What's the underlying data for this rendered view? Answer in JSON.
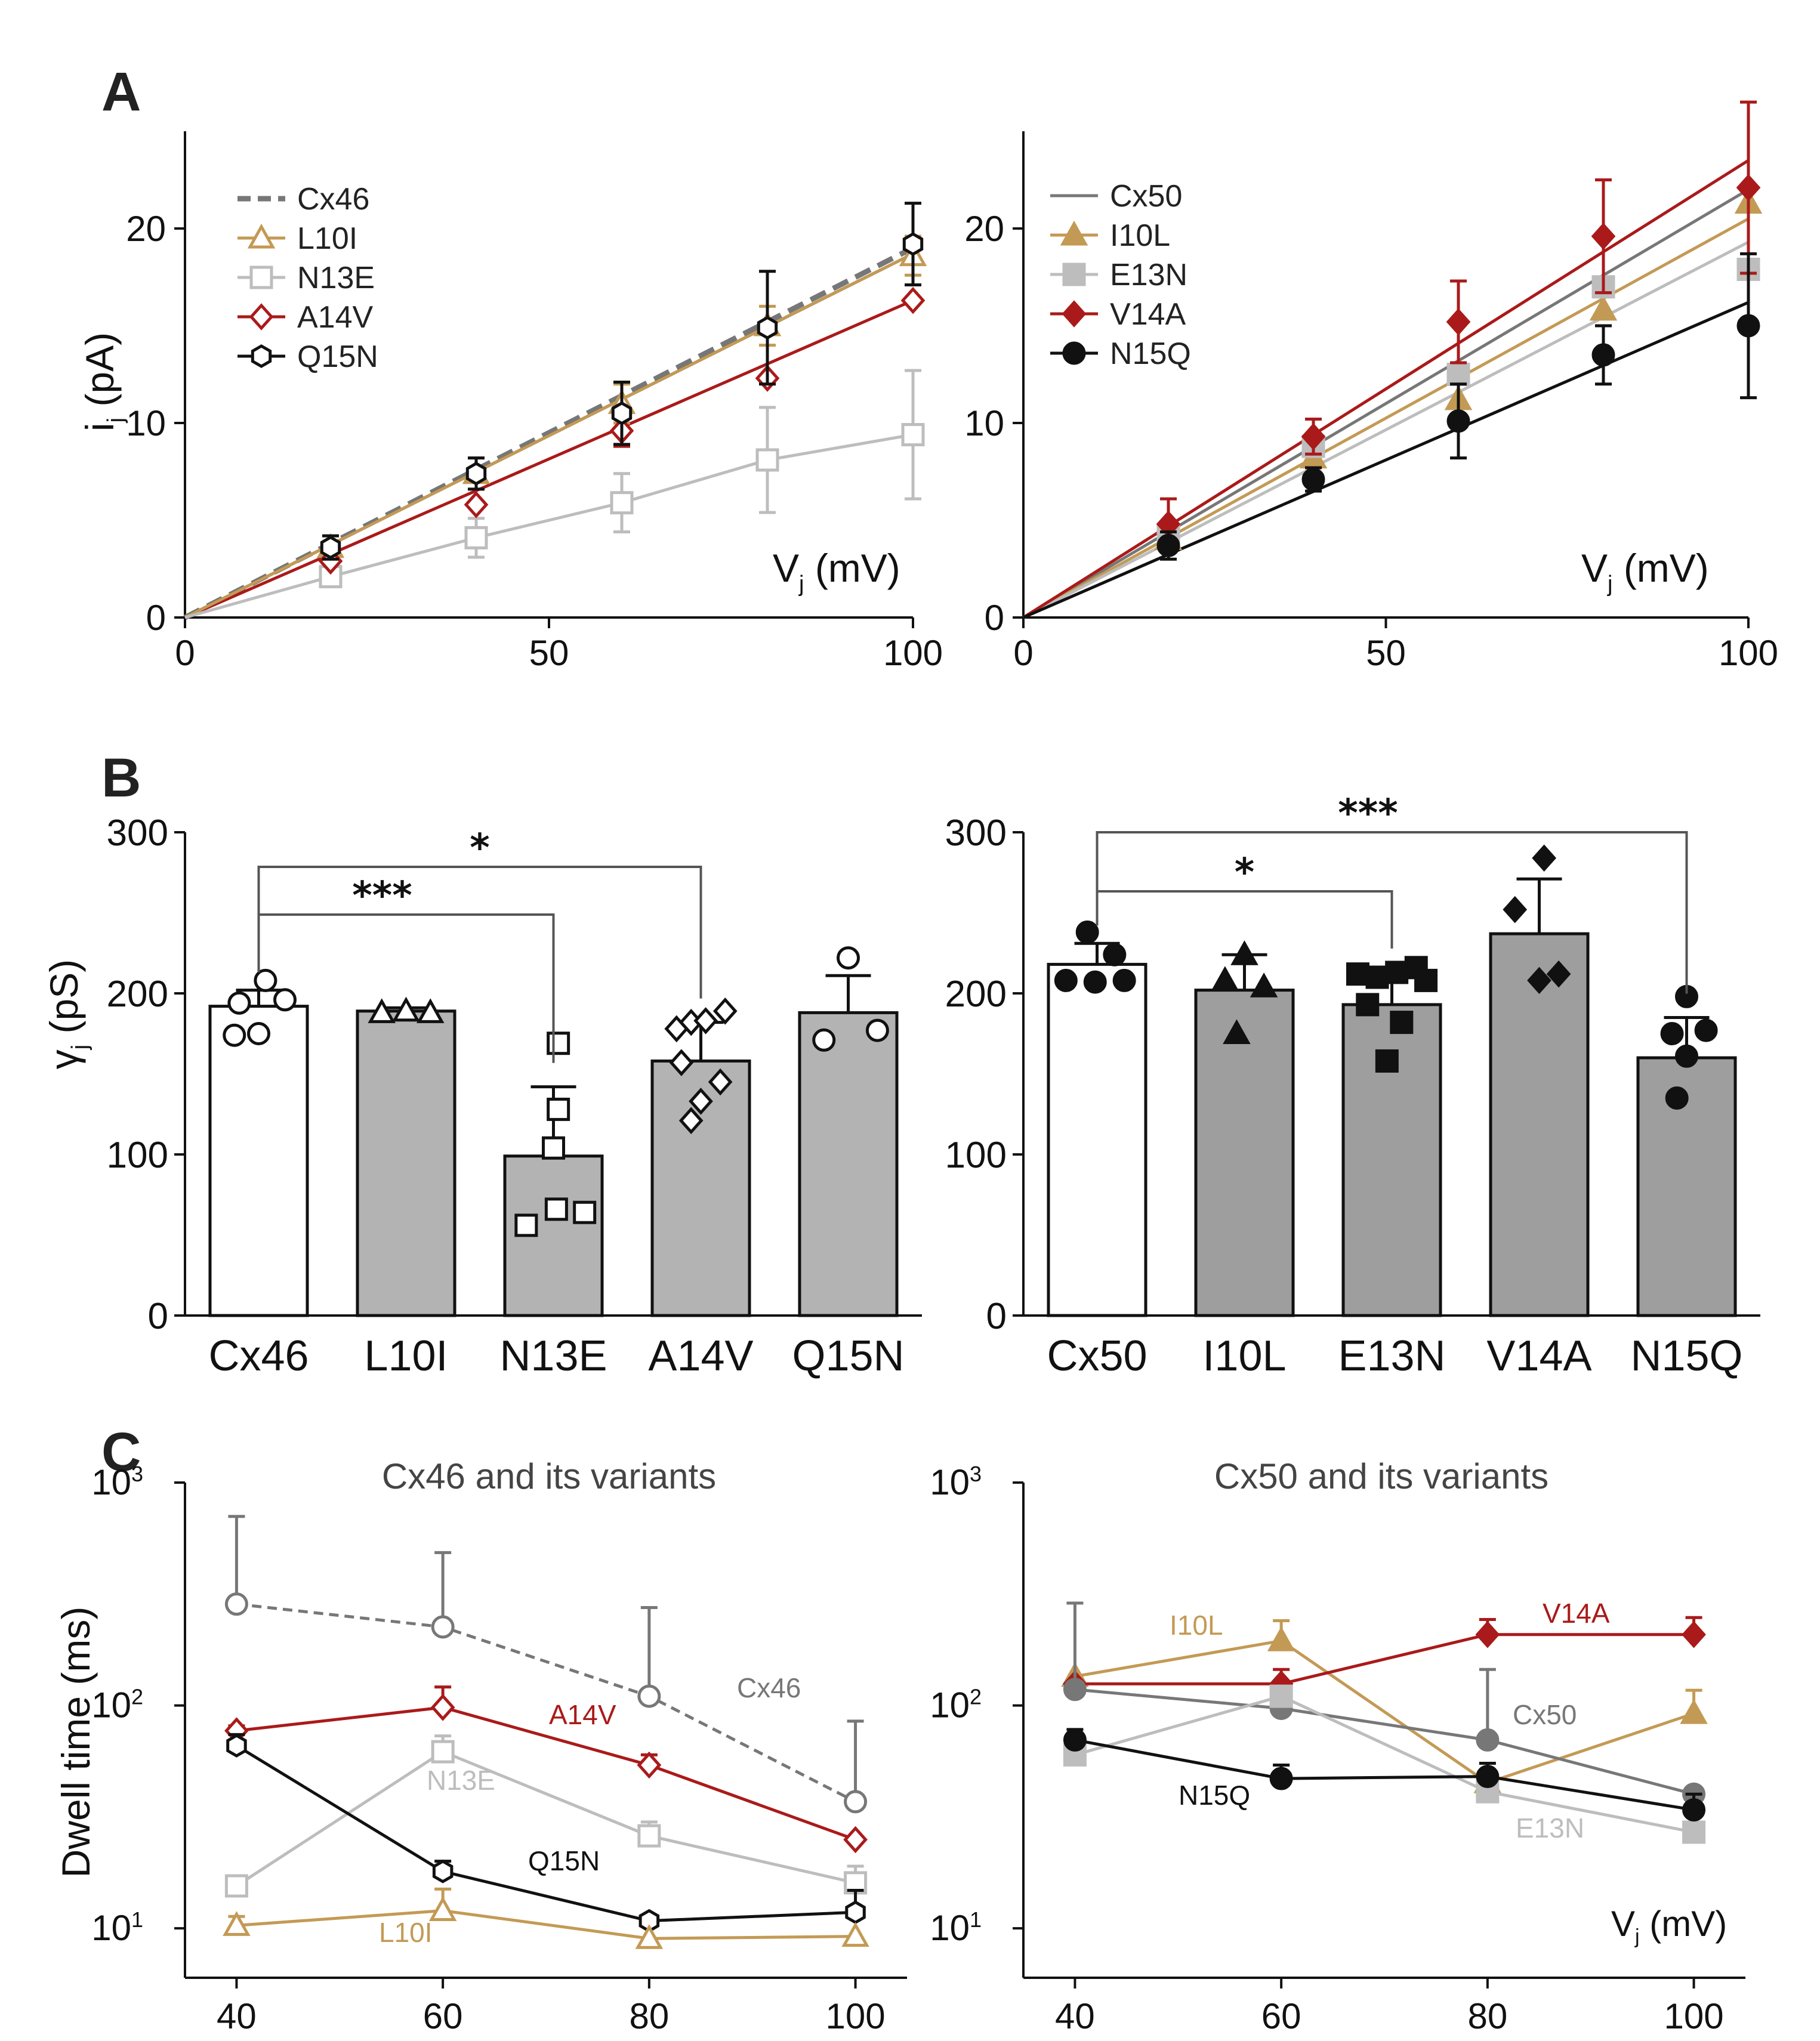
{
  "panel_letters": [
    "A",
    "B",
    "C"
  ],
  "colors": {
    "gray": "#777777",
    "tan": "#c39a55",
    "light": "#bdbdbd",
    "red": "#aa1a1a",
    "black": "#111111",
    "bar": "#b3b3b3",
    "bar_dark": "#9e9e9e"
  },
  "chart_data": [
    {
      "id": "A1",
      "type": "line",
      "ylabel": "i",
      "ylabel_sub": "j",
      "ylabel_unit": "(pA)",
      "xlabel": "V",
      "xlabel_sub": "j",
      "xlabel_unit": "(mV)",
      "xlim": [
        0,
        100
      ],
      "ylim": [
        0,
        25
      ],
      "xticks": [
        "0",
        "50",
        "100"
      ],
      "yticks": [
        "0",
        "10",
        "20"
      ],
      "fit_lines": [
        {
          "name": "Cx46",
          "slope": 0.19
        },
        {
          "name": "Q15N",
          "slope": 0.187
        },
        {
          "name": "A14V",
          "slope": 0.163
        },
        {
          "name": "L10I",
          "slope": 0.187
        }
      ],
      "series": [
        {
          "name": "Cx46",
          "color": "gray",
          "marker": "none",
          "dash": true,
          "x": [
            0,
            100
          ],
          "y": [
            0,
            19
          ],
          "err": [
            0,
            0
          ]
        },
        {
          "name": "L10I",
          "color": "tan",
          "marker": "triangle-open",
          "x": [
            20,
            40,
            60,
            80,
            100
          ],
          "y": [
            3.6,
            7.4,
            11.0,
            15.0,
            18.6
          ],
          "err": [
            0.6,
            0.8,
            1.0,
            1.0,
            1.0
          ]
        },
        {
          "name": "N13E",
          "color": "light",
          "marker": "square-open",
          "x": [
            20,
            40,
            60,
            80,
            100
          ],
          "y": [
            2.1,
            4.1,
            5.9,
            8.1,
            9.4
          ],
          "err": [
            0.3,
            1.0,
            1.5,
            2.7,
            3.3
          ]
        },
        {
          "name": "A14V",
          "color": "red",
          "marker": "diamond-open",
          "x": [
            20,
            40,
            60,
            80,
            100
          ],
          "y": [
            2.9,
            5.8,
            9.6,
            12.3,
            16.3
          ],
          "err": [
            0,
            0,
            0.8,
            0,
            0
          ]
        },
        {
          "name": "Q15N",
          "color": "black",
          "marker": "hexagon-open",
          "x": [
            20,
            40,
            60,
            80,
            100
          ],
          "y": [
            3.6,
            7.4,
            10.5,
            14.9,
            19.2
          ],
          "err": [
            0.6,
            0.8,
            1.6,
            2.9,
            2.1
          ]
        }
      ]
    },
    {
      "id": "A2",
      "type": "line",
      "xlabel": "V",
      "xlabel_sub": "j",
      "xlabel_unit": "(mV)",
      "xlim": [
        0,
        100
      ],
      "ylim": [
        0,
        25
      ],
      "xticks": [
        "0",
        "50",
        "100"
      ],
      "yticks": [
        "0",
        "10",
        "20"
      ],
      "fit_lines": [
        {
          "name": "Cx50",
          "slope": 0.22
        },
        {
          "name": "I10L",
          "slope": 0.205
        },
        {
          "name": "E13N",
          "slope": 0.193
        },
        {
          "name": "V14A",
          "slope": 0.235
        },
        {
          "name": "N15Q",
          "slope": 0.162
        }
      ],
      "series": [
        {
          "name": "Cx50",
          "color": "gray",
          "marker": "none",
          "x": [
            0,
            100
          ],
          "y": [
            0,
            22
          ],
          "err": [
            0,
            0
          ]
        },
        {
          "name": "I10L",
          "color": "tan",
          "marker": "triangle",
          "x": [
            20,
            40,
            60,
            80,
            100
          ],
          "y": [
            4.0,
            8.2,
            11.2,
            15.8,
            21.3
          ],
          "err": [
            0,
            0,
            0,
            0,
            0
          ]
        },
        {
          "name": "E13N",
          "color": "light",
          "marker": "square",
          "x": [
            20,
            40,
            60,
            80,
            100
          ],
          "y": [
            4.2,
            8.8,
            12.5,
            17.0,
            17.9
          ],
          "err": [
            0,
            0,
            0,
            0,
            0
          ]
        },
        {
          "name": "V14A",
          "color": "red",
          "marker": "diamond",
          "x": [
            20,
            40,
            60,
            80,
            100
          ],
          "y": [
            4.8,
            9.3,
            15.2,
            19.6,
            22.1
          ],
          "err": [
            1.3,
            0.9,
            2.1,
            2.9,
            4.4
          ]
        },
        {
          "name": "N15Q",
          "color": "black",
          "marker": "circle",
          "x": [
            20,
            40,
            60,
            80,
            100
          ],
          "y": [
            3.7,
            7.1,
            10.1,
            13.5,
            15.0
          ],
          "err": [
            0.7,
            0.6,
            1.9,
            1.5,
            3.7
          ]
        }
      ]
    },
    {
      "id": "B1",
      "type": "bar",
      "ylabel": "γ",
      "ylabel_sub": "j",
      "ylabel_unit": "(pS)",
      "ylim": [
        0,
        300
      ],
      "yticks": [
        "0",
        "100",
        "200",
        "300"
      ],
      "categories": [
        "Cx46",
        "L10I",
        "N13E",
        "A14V",
        "Q15N"
      ],
      "values": [
        192,
        189,
        99,
        158,
        188
      ],
      "errors": [
        10,
        2,
        43,
        24,
        23
      ],
      "fills": [
        "white",
        "gray",
        "gray",
        "gray",
        "gray"
      ],
      "marker": "open",
      "points": [
        {
          "x": [
            -0.2,
            0.07,
            0.27,
            -0.25,
            0.0
          ],
          "y": [
            194,
            208,
            196,
            174,
            175
          ]
        },
        {
          "x": [
            -0.25,
            0.0,
            0.25
          ],
          "y": [
            188,
            189,
            188
          ]
        },
        {
          "x": [
            0.05,
            0.05,
            0.0,
            -0.28,
            0.03,
            0.32
          ],
          "y": [
            169,
            128,
            104,
            56,
            66,
            64
          ]
        },
        {
          "x": [
            -0.25,
            -0.1,
            0.05,
            0.25,
            -0.2,
            0.2,
            -0.1,
            0.0
          ],
          "y": [
            178,
            182,
            183,
            189,
            157,
            145,
            121,
            133
          ]
        },
        {
          "x": [
            -0.25,
            0.0,
            0.3
          ],
          "y": [
            171,
            222,
            177
          ]
        }
      ],
      "significance": [
        {
          "from": 0,
          "to": 2,
          "label": "***"
        },
        {
          "from": 0,
          "to": 3,
          "label": "*"
        }
      ]
    },
    {
      "id": "B2",
      "type": "bar",
      "ylim": [
        0,
        300
      ],
      "yticks": [
        "0",
        "100",
        "200",
        "300"
      ],
      "categories": [
        "Cx50",
        "I10L",
        "E13N",
        "V14A",
        "N15Q"
      ],
      "values": [
        218,
        202,
        193,
        237,
        160
      ],
      "errors": [
        13,
        22,
        20,
        34,
        25
      ],
      "fills": [
        "white",
        "gray",
        "gray",
        "gray",
        "gray"
      ],
      "marker": "filled",
      "points": [
        {
          "x": [
            -0.32,
            -0.02,
            0.28,
            -0.1,
            0.18
          ],
          "y": [
            208,
            207,
            208,
            238,
            224
          ]
        },
        {
          "x": [
            -0.2,
            0.0,
            0.2,
            -0.08
          ],
          "y": [
            208,
            224,
            204,
            175
          ]
        },
        {
          "x": [
            -0.35,
            -0.15,
            0.05,
            0.25,
            0.35,
            -0.25,
            0.1,
            -0.05
          ],
          "y": [
            212,
            210,
            213,
            216,
            208,
            193,
            182,
            158
          ]
        },
        {
          "x": [
            0.05,
            -0.25,
            0.2,
            0.0
          ],
          "y": [
            284,
            252,
            212,
            208
          ]
        },
        {
          "x": [
            0.0,
            -0.15,
            0.2,
            0.0,
            -0.1
          ],
          "y": [
            198,
            175,
            177,
            161,
            135
          ]
        }
      ],
      "significance": [
        {
          "from": 0,
          "to": 2,
          "label": "*"
        },
        {
          "from": 0,
          "to": 4,
          "label": "***"
        }
      ]
    },
    {
      "id": "C1",
      "type": "line",
      "yscale": "log",
      "title": "Cx46 and its variants",
      "ylabel": "Dwell time (ms)",
      "xlim": [
        35,
        105
      ],
      "xticks": [
        "40",
        "60",
        "80",
        "100"
      ],
      "ylim": [
        6,
        1000
      ],
      "ytick_base": "10",
      "ytick_exps": [
        "3",
        "2",
        "1"
      ],
      "series": [
        {
          "name": "Cx46",
          "color": "gray",
          "marker": "circle-open",
          "dash": true,
          "x": [
            40,
            60,
            80,
            100
          ],
          "y": [
            285,
            225,
            110,
            37
          ],
          "err_up": [
            420,
            260,
            165,
            48
          ]
        },
        {
          "name": "A14V",
          "color": "red",
          "marker": "diamond-open",
          "x": [
            40,
            60,
            80,
            100
          ],
          "y": [
            77,
            98,
            54,
            25
          ],
          "err_up": [
            4,
            23,
            6,
            0
          ]
        },
        {
          "name": "N13E",
          "color": "light",
          "marker": "square-open",
          "x": [
            40,
            60,
            80,
            100
          ],
          "y": [
            15.5,
            62,
            26,
            16
          ],
          "err_up": [
            0,
            11,
            4,
            3
          ]
        },
        {
          "name": "Q15N",
          "color": "black",
          "marker": "hexagon-open",
          "x": [
            40,
            60,
            80,
            100
          ],
          "y": [
            66,
            18,
            10.8,
            11.8
          ],
          "err_up": [
            8,
            2,
            0,
            3
          ]
        },
        {
          "name": "L10I",
          "color": "tan",
          "marker": "triangle-open",
          "x": [
            40,
            60,
            80,
            100
          ],
          "y": [
            10.3,
            12,
            9,
            9.2
          ],
          "err_up": [
            1,
            3,
            0,
            0
          ]
        }
      ],
      "labels": [
        "Cx46",
        "A14V",
        "N13E",
        "Q15N",
        "L10I"
      ]
    },
    {
      "id": "C2",
      "type": "line",
      "yscale": "log",
      "title": "Cx50 and its variants",
      "xlabel": "V",
      "xlabel_sub": "j",
      "xlabel_unit": "(mV)",
      "xlim": [
        35,
        105
      ],
      "xticks": [
        "40",
        "60",
        "80",
        "100"
      ],
      "ylim": [
        6,
        1000
      ],
      "ytick_base": "10",
      "ytick_exps": [
        "3",
        "2",
        "1"
      ],
      "series": [
        {
          "name": "I10L",
          "color": "tan",
          "marker": "triangle",
          "x": [
            40,
            60,
            80,
            100
          ],
          "y": [
            135,
            195,
            45,
            92
          ],
          "err_up": [
            0,
            45,
            0,
            25
          ]
        },
        {
          "name": "V14A",
          "color": "red",
          "marker": "diamond",
          "x": [
            40,
            60,
            80,
            100
          ],
          "y": [
            125,
            125,
            208,
            208
          ],
          "err_up": [
            0,
            20,
            35,
            40
          ]
        },
        {
          "name": "Cx50",
          "color": "gray",
          "marker": "circle",
          "x": [
            40,
            60,
            80,
            100
          ],
          "y": [
            118,
            97,
            70,
            40
          ],
          "err_up": [
            170,
            0,
            75,
            0
          ]
        },
        {
          "name": "E13N",
          "color": "light",
          "marker": "square",
          "x": [
            40,
            60,
            80,
            100
          ],
          "y": [
            60,
            110,
            41,
            27
          ],
          "err_up": [
            0,
            0,
            0,
            0
          ]
        },
        {
          "name": "N15Q",
          "color": "black",
          "marker": "circle",
          "x": [
            40,
            60,
            80,
            100
          ],
          "y": [
            70,
            47,
            48,
            34
          ],
          "err_up": [
            8,
            7,
            7,
            6
          ]
        }
      ],
      "labels": [
        "I10L",
        "V14A",
        "Cx50",
        "E13N",
        "N15Q"
      ]
    }
  ]
}
